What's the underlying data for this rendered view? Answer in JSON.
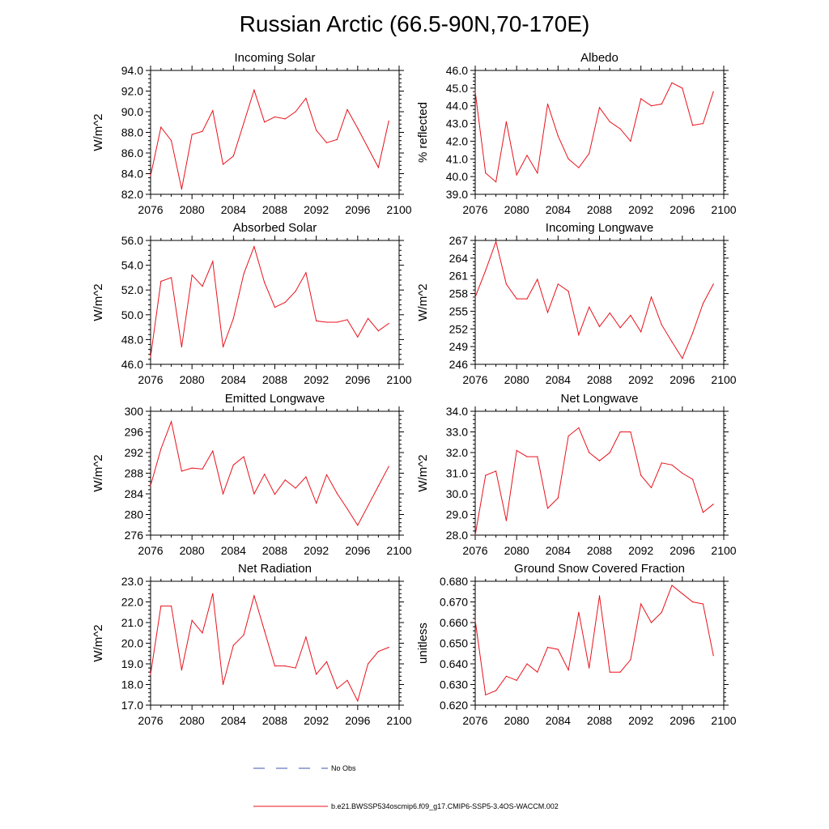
{
  "title": "Russian Arctic (66.5-90N,70-170E)",
  "colors": {
    "model_line": "#e8121b",
    "obs_line": "#3f55b0",
    "axis": "#000000"
  },
  "legend": {
    "obs_label": "No Obs",
    "model_label": "b.e21.BWSSP534oscmip6.f09_g17.CMIP6-SSP5-3.4OS-WACCM.002"
  },
  "chart_data": [
    {
      "type": "line",
      "title": "Incoming Solar",
      "xlabel": "",
      "ylabel": "W/m^2",
      "xlim": [
        2076,
        2100
      ],
      "xticks": [
        2076,
        2080,
        2084,
        2088,
        2092,
        2096,
        2100
      ],
      "xtick_labels": [
        "2076",
        "2080",
        "2084",
        "2088",
        "2092",
        "2096",
        "2100"
      ],
      "ylim": [
        82.0,
        94.0
      ],
      "yticks": [
        82.0,
        84.0,
        86.0,
        88.0,
        90.0,
        92.0,
        94.0
      ],
      "ytick_labels": [
        "82.0",
        "84.0",
        "86.0",
        "88.0",
        "90.0",
        "92.0",
        "94.0"
      ],
      "series": [
        {
          "name": "b.e21.BWSSP534oscmip6.f09_g17.CMIP6-SSP5-3.4OS-WACCM.002",
          "x": [
            2076,
            2077,
            2078,
            2079,
            2080,
            2081,
            2082,
            2083,
            2084,
            2085,
            2086,
            2087,
            2088,
            2089,
            2090,
            2091,
            2092,
            2093,
            2094,
            2095,
            2096,
            2097,
            2098,
            2099
          ],
          "values": [
            83.8,
            88.5,
            87.2,
            82.5,
            87.8,
            88.1,
            90.1,
            84.9,
            85.7,
            88.9,
            92.1,
            89.0,
            89.5,
            89.3,
            90.0,
            91.3,
            88.2,
            87.0,
            87.3,
            90.2,
            88.4,
            86.5,
            84.6,
            89.1
          ]
        }
      ]
    },
    {
      "type": "line",
      "title": "Albedo",
      "xlabel": "",
      "ylabel": "% reflected",
      "xlim": [
        2076,
        2100
      ],
      "xticks": [
        2076,
        2080,
        2084,
        2088,
        2092,
        2096,
        2100
      ],
      "xtick_labels": [
        "2076",
        "2080",
        "2084",
        "2088",
        "2092",
        "2096",
        "2100"
      ],
      "ylim": [
        39.0,
        46.0
      ],
      "yticks": [
        39.0,
        40.0,
        41.0,
        42.0,
        43.0,
        44.0,
        45.0,
        46.0
      ],
      "ytick_labels": [
        "39.0",
        "40.0",
        "41.0",
        "42.0",
        "43.0",
        "44.0",
        "45.0",
        "46.0"
      ],
      "series": [
        {
          "name": "b.e21.BWSSP534oscmip6.f09_g17.CMIP6-SSP5-3.4OS-WACCM.002",
          "x": [
            2076,
            2077,
            2078,
            2079,
            2080,
            2081,
            2082,
            2083,
            2084,
            2085,
            2086,
            2087,
            2088,
            2089,
            2090,
            2091,
            2092,
            2093,
            2094,
            2095,
            2096,
            2097,
            2098,
            2099
          ],
          "values": [
            44.8,
            40.2,
            39.7,
            43.1,
            40.1,
            41.2,
            40.2,
            44.1,
            42.3,
            41.0,
            40.5,
            41.3,
            43.9,
            43.1,
            42.7,
            42.0,
            44.4,
            44.0,
            44.1,
            45.3,
            45.0,
            42.9,
            43.0,
            44.8
          ]
        }
      ]
    },
    {
      "type": "line",
      "title": "Absorbed Solar",
      "xlabel": "",
      "ylabel": "W/m^2",
      "xlim": [
        2076,
        2100
      ],
      "xticks": [
        2076,
        2080,
        2084,
        2088,
        2092,
        2096,
        2100
      ],
      "xtick_labels": [
        "2076",
        "2080",
        "2084",
        "2088",
        "2092",
        "2096",
        "2100"
      ],
      "ylim": [
        46.0,
        56.0
      ],
      "yticks": [
        46.0,
        48.0,
        50.0,
        52.0,
        54.0,
        56.0
      ],
      "ytick_labels": [
        "46.0",
        "48.0",
        "50.0",
        "52.0",
        "54.0",
        "56.0"
      ],
      "series": [
        {
          "name": "b.e21.BWSSP534oscmip6.f09_g17.CMIP6-SSP5-3.4OS-WACCM.002",
          "x": [
            2076,
            2077,
            2078,
            2079,
            2080,
            2081,
            2082,
            2083,
            2084,
            2085,
            2086,
            2087,
            2088,
            2089,
            2090,
            2091,
            2092,
            2093,
            2094,
            2095,
            2096,
            2097,
            2098,
            2099
          ],
          "values": [
            46.6,
            52.7,
            53.0,
            47.4,
            53.2,
            52.3,
            54.3,
            47.4,
            49.7,
            53.3,
            55.5,
            52.6,
            50.6,
            51.0,
            51.9,
            53.4,
            49.5,
            49.4,
            49.4,
            49.6,
            48.2,
            49.7,
            48.7,
            49.3
          ]
        }
      ]
    },
    {
      "type": "line",
      "title": "Incoming Longwave",
      "xlabel": "",
      "ylabel": "W/m^2",
      "xlim": [
        2076,
        2100
      ],
      "xticks": [
        2076,
        2080,
        2084,
        2088,
        2092,
        2096,
        2100
      ],
      "xtick_labels": [
        "2076",
        "2080",
        "2084",
        "2088",
        "2092",
        "2096",
        "2100"
      ],
      "ylim": [
        246,
        267
      ],
      "yticks": [
        246,
        249,
        252,
        255,
        258,
        261,
        264,
        267
      ],
      "ytick_labels": [
        "246",
        "249",
        "252",
        "255",
        "258",
        "261",
        "264",
        "267"
      ],
      "series": [
        {
          "name": "b.e21.BWSSP534oscmip6.f09_g17.CMIP6-SSP5-3.4OS-WACCM.002",
          "x": [
            2076,
            2077,
            2078,
            2079,
            2080,
            2081,
            2082,
            2083,
            2084,
            2085,
            2086,
            2087,
            2088,
            2089,
            2090,
            2091,
            2092,
            2093,
            2094,
            2095,
            2096,
            2097,
            2098,
            2099
          ],
          "values": [
            257.4,
            261.9,
            266.8,
            259.6,
            257.1,
            257.1,
            260.4,
            254.8,
            259.6,
            258.4,
            251.0,
            255.7,
            252.4,
            254.7,
            252.2,
            254.3,
            251.5,
            257.4,
            252.7,
            249.8,
            247.0,
            251.3,
            256.3,
            259.6
          ]
        }
      ]
    },
    {
      "type": "line",
      "title": "Emitted Longwave",
      "xlabel": "",
      "ylabel": "W/m^2",
      "xlim": [
        2076,
        2100
      ],
      "xticks": [
        2076,
        2080,
        2084,
        2088,
        2092,
        2096,
        2100
      ],
      "xtick_labels": [
        "2076",
        "2080",
        "2084",
        "2088",
        "2092",
        "2096",
        "2100"
      ],
      "ylim": [
        276,
        300
      ],
      "yticks": [
        276,
        280,
        284,
        288,
        292,
        296,
        300
      ],
      "ytick_labels": [
        "276",
        "280",
        "284",
        "288",
        "292",
        "296",
        "300"
      ],
      "series": [
        {
          "name": "b.e21.BWSSP534oscmip6.f09_g17.CMIP6-SSP5-3.4OS-WACCM.002",
          "x": [
            2076,
            2077,
            2078,
            2079,
            2080,
            2081,
            2082,
            2083,
            2084,
            2085,
            2086,
            2087,
            2088,
            2089,
            2090,
            2091,
            2092,
            2093,
            2094,
            2095,
            2096,
            2097,
            2098,
            2099
          ],
          "values": [
            285.6,
            292.7,
            298.0,
            288.4,
            289.0,
            288.8,
            292.3,
            284.0,
            289.6,
            291.2,
            284.0,
            287.8,
            283.9,
            286.7,
            285.1,
            287.3,
            282.2,
            287.7,
            284.1,
            281.1,
            277.9,
            281.7,
            285.5,
            289.3
          ]
        }
      ]
    },
    {
      "type": "line",
      "title": "Net Longwave",
      "xlabel": "",
      "ylabel": "W/m^2",
      "xlim": [
        2076,
        2100
      ],
      "xticks": [
        2076,
        2080,
        2084,
        2088,
        2092,
        2096,
        2100
      ],
      "xtick_labels": [
        "2076",
        "2080",
        "2084",
        "2088",
        "2092",
        "2096",
        "2100"
      ],
      "ylim": [
        28.0,
        34.0
      ],
      "yticks": [
        28.0,
        29.0,
        30.0,
        31.0,
        32.0,
        33.0,
        34.0
      ],
      "ytick_labels": [
        "28.0",
        "29.0",
        "30.0",
        "31.0",
        "32.0",
        "33.0",
        "34.0"
      ],
      "series": [
        {
          "name": "b.e21.BWSSP534oscmip6.f09_g17.CMIP6-SSP5-3.4OS-WACCM.002",
          "x": [
            2076,
            2077,
            2078,
            2079,
            2080,
            2081,
            2082,
            2083,
            2084,
            2085,
            2086,
            2087,
            2088,
            2089,
            2090,
            2091,
            2092,
            2093,
            2094,
            2095,
            2096,
            2097,
            2098,
            2099
          ],
          "values": [
            28.0,
            30.9,
            31.1,
            28.7,
            32.1,
            31.8,
            31.8,
            29.3,
            29.8,
            32.8,
            33.2,
            32.0,
            31.6,
            32.0,
            33.0,
            33.0,
            30.9,
            30.3,
            31.5,
            31.4,
            31.0,
            30.7,
            29.1,
            29.5
          ]
        }
      ]
    },
    {
      "type": "line",
      "title": "Net Radiation",
      "xlabel": "",
      "ylabel": "W/m^2",
      "xlim": [
        2076,
        2100
      ],
      "xticks": [
        2076,
        2080,
        2084,
        2088,
        2092,
        2096,
        2100
      ],
      "xtick_labels": [
        "2076",
        "2080",
        "2084",
        "2088",
        "2092",
        "2096",
        "2100"
      ],
      "ylim": [
        17.0,
        23.0
      ],
      "yticks": [
        17.0,
        18.0,
        19.0,
        20.0,
        21.0,
        22.0,
        23.0
      ],
      "ytick_labels": [
        "17.0",
        "18.0",
        "19.0",
        "20.0",
        "21.0",
        "22.0",
        "23.0"
      ],
      "series": [
        {
          "name": "b.e21.BWSSP534oscmip6.f09_g17.CMIP6-SSP5-3.4OS-WACCM.002",
          "x": [
            2076,
            2077,
            2078,
            2079,
            2080,
            2081,
            2082,
            2083,
            2084,
            2085,
            2086,
            2087,
            2088,
            2089,
            2090,
            2091,
            2092,
            2093,
            2094,
            2095,
            2096,
            2097,
            2098,
            2099
          ],
          "values": [
            18.5,
            21.8,
            21.8,
            18.7,
            21.1,
            20.5,
            22.4,
            18.0,
            19.9,
            20.4,
            22.3,
            20.6,
            18.9,
            18.9,
            18.8,
            20.3,
            18.5,
            19.1,
            17.8,
            18.2,
            17.2,
            19.0,
            19.6,
            19.8
          ]
        }
      ]
    },
    {
      "type": "line",
      "title": "Ground Snow Covered Fraction",
      "xlabel": "",
      "ylabel": "unitless",
      "xlim": [
        2076,
        2100
      ],
      "xticks": [
        2076,
        2080,
        2084,
        2088,
        2092,
        2096,
        2100
      ],
      "xtick_labels": [
        "2076",
        "2080",
        "2084",
        "2088",
        "2092",
        "2096",
        "2100"
      ],
      "ylim": [
        0.62,
        0.68
      ],
      "yticks": [
        0.62,
        0.63,
        0.64,
        0.65,
        0.66,
        0.67,
        0.68
      ],
      "ytick_labels": [
        "0.620",
        "0.630",
        "0.640",
        "0.650",
        "0.660",
        "0.670",
        "0.680"
      ],
      "series": [
        {
          "name": "b.e21.BWSSP534oscmip6.f09_g17.CMIP6-SSP5-3.4OS-WACCM.002",
          "x": [
            2076,
            2077,
            2078,
            2079,
            2080,
            2081,
            2082,
            2083,
            2084,
            2085,
            2086,
            2087,
            2088,
            2089,
            2090,
            2091,
            2092,
            2093,
            2094,
            2095,
            2096,
            2097,
            2098,
            2099
          ],
          "values": [
            0.661,
            0.625,
            0.627,
            0.634,
            0.632,
            0.64,
            0.636,
            0.648,
            0.647,
            0.637,
            0.665,
            0.638,
            0.673,
            0.636,
            0.636,
            0.642,
            0.669,
            0.66,
            0.665,
            0.678,
            0.674,
            0.67,
            0.669,
            0.644
          ]
        }
      ]
    }
  ]
}
